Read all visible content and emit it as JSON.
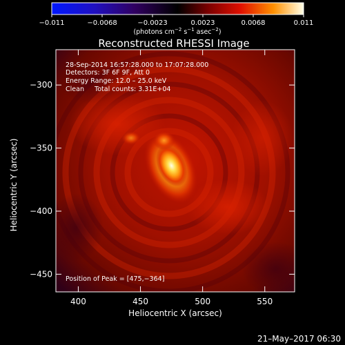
{
  "chart_data": {
    "type": "heatmap",
    "title": "Reconstructed RHESSI Image",
    "xlabel": "Heliocentric X (arcsec)",
    "ylabel": "Heliocentric Y (arcsec)",
    "xlim": [
      382,
      574
    ],
    "ylim": [
      -464,
      -272
    ],
    "xticks": [
      400,
      450,
      500,
      550
    ],
    "yticks": [
      -300,
      -350,
      -400,
      -450
    ],
    "colorbar": {
      "ticks": [
        "−0.011",
        "−0.0068",
        "−0.0023",
        "0.0023",
        "0.0068",
        "0.011"
      ],
      "units_prefix": "(photons cm",
      "units_sup1": "−2",
      "units_mid": " s",
      "units_sup2": "−1",
      "units_mid2": " asec",
      "units_sup3": "−2",
      "units_suffix": ")",
      "range": [
        -0.011,
        0.011
      ]
    },
    "annotations": {
      "time_range": "28-Sep-2014 16:57:28.000 to 17:07:28.000",
      "detectors": "Detectors: 3F 6F 9F, Att 0",
      "energy": "Energy Range: 12.0 – 25.0 keV",
      "clean": "Clean     Total counts: 3.31E+04",
      "peak": "Position of Peak = [475,−364]"
    },
    "sources": [
      {
        "x": 475,
        "y": -364,
        "value": 0.011,
        "role": "primary"
      },
      {
        "x": 469,
        "y": -344,
        "value": 0.0065,
        "role": "secondary"
      }
    ]
  },
  "footer": {
    "timestamp": "21–May–2017 06:30"
  }
}
